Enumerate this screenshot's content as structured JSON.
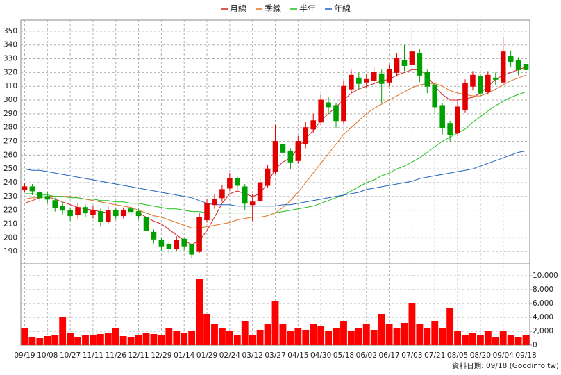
{
  "chart_data": {
    "type": "candlestick",
    "categories": [
      "09/19",
      null,
      null,
      "10/08",
      null,
      null,
      "10/27",
      null,
      null,
      "11/11",
      null,
      null,
      "11/26",
      null,
      null,
      "12/11",
      null,
      null,
      "12/29",
      null,
      null,
      "01/14",
      null,
      null,
      "01/29",
      null,
      null,
      "02/24",
      null,
      null,
      "03/12",
      null,
      null,
      "03/27",
      null,
      null,
      "04/15",
      null,
      null,
      "04/30",
      null,
      null,
      "05/18",
      null,
      null,
      "06/02",
      null,
      null,
      "06/17",
      null,
      null,
      "07/03",
      null,
      null,
      "07/21",
      null,
      null,
      "08/05",
      null,
      null,
      "08/20",
      null,
      null,
      "09/04",
      null,
      null,
      "09/18"
    ],
    "open": [
      235,
      237,
      233,
      230,
      227,
      223,
      220,
      217,
      222,
      217,
      219,
      212,
      220,
      216,
      221,
      219,
      215,
      204,
      198,
      195,
      192,
      199,
      195,
      190,
      213,
      224,
      229,
      236,
      243,
      237,
      224,
      227,
      238,
      248,
      268,
      263,
      256,
      268,
      279,
      284,
      298,
      296,
      285,
      308,
      316,
      313,
      314,
      319,
      313,
      320,
      329,
      326,
      334,
      320,
      311,
      296,
      283,
      276,
      293,
      310,
      317,
      306,
      316,
      313,
      332,
      329,
      326
    ],
    "high": [
      240,
      239,
      235,
      233,
      229,
      226,
      222,
      225,
      224,
      223,
      221,
      223,
      222,
      222,
      223,
      221,
      216,
      206,
      200,
      197,
      201,
      200,
      196,
      218,
      228,
      232,
      238,
      247,
      245,
      239,
      232,
      243,
      253,
      282,
      272,
      265,
      274,
      284,
      290,
      304,
      302,
      298,
      314,
      322,
      320,
      319,
      324,
      322,
      326,
      334,
      340,
      352,
      337,
      322,
      313,
      298,
      285,
      300,
      315,
      321,
      319,
      321,
      320,
      346,
      336,
      331,
      328
    ],
    "low": [
      233,
      231,
      226,
      225,
      219,
      217,
      212,
      214,
      215,
      214,
      208,
      210,
      213,
      214,
      216,
      213,
      202,
      196,
      190,
      189,
      190,
      191,
      185,
      189,
      211,
      221,
      226,
      234,
      235,
      220,
      212,
      225,
      236,
      246,
      258,
      250,
      254,
      265,
      276,
      282,
      290,
      280,
      283,
      305,
      308,
      309,
      311,
      298,
      310,
      317,
      321,
      322,
      313,
      305,
      290,
      275,
      270,
      274,
      291,
      307,
      302,
      304,
      311,
      311,
      324,
      318,
      318
    ],
    "close": [
      237,
      234,
      229,
      228,
      222,
      220,
      216,
      222,
      218,
      220,
      212,
      220,
      216,
      220,
      219,
      216,
      205,
      199,
      194,
      192,
      198,
      194,
      188,
      215,
      225,
      228,
      235,
      243,
      238,
      225,
      226,
      240,
      250,
      270,
      262,
      255,
      270,
      280,
      285,
      300,
      295,
      285,
      310,
      318,
      312,
      315,
      320,
      312,
      322,
      330,
      325,
      335,
      318,
      310,
      295,
      280,
      275,
      295,
      312,
      318,
      305,
      318,
      315,
      335,
      328,
      322,
      322
    ],
    "up_color": "#e00000",
    "down_color": "#00a000",
    "volume": [
      2500,
      1200,
      1000,
      1300,
      1500,
      4000,
      1800,
      1200,
      1500,
      1400,
      1600,
      1700,
      2500,
      1300,
      1200,
      1500,
      1800,
      1600,
      1500,
      2400,
      2000,
      1800,
      2000,
      9500,
      4500,
      3000,
      2500,
      2000,
      1500,
      3500,
      1500,
      2200,
      3000,
      6300,
      3000,
      2000,
      2500,
      2200,
      3000,
      2800,
      2000,
      2500,
      3500,
      2000,
      2500,
      3000,
      2200,
      4500,
      3000,
      2500,
      3200,
      6000,
      3000,
      2500,
      3500,
      2500,
      5300,
      2000,
      1500,
      1800,
      1500,
      2000,
      1200,
      2000,
      1500,
      1200,
      1500
    ],
    "volume_color": "#ff0000",
    "series": [
      {
        "name": "月線",
        "color": "#d02020",
        "values": [
          225,
          227,
          229,
          230,
          228,
          226,
          224,
          222,
          221,
          220,
          219,
          218,
          218,
          218,
          218,
          218,
          215,
          212,
          210,
          206,
          202,
          198,
          195,
          198,
          205,
          215,
          225,
          232,
          234,
          232,
          230,
          232,
          240,
          250,
          255,
          258,
          265,
          272,
          278,
          285,
          290,
          295,
          300,
          305,
          308,
          310,
          312,
          314,
          315,
          318,
          320,
          322,
          322,
          318,
          310,
          304,
          300,
          300,
          301,
          302,
          305,
          310,
          315,
          318,
          320,
          322,
          324
        ]
      },
      {
        "name": "季線",
        "color": "#e07020",
        "values": [
          228,
          229,
          229,
          230,
          230,
          230,
          230,
          229,
          228,
          227,
          226,
          225,
          224,
          223,
          222,
          220,
          218,
          216,
          215,
          213,
          211,
          209,
          207,
          207,
          208,
          209,
          210,
          211,
          213,
          214,
          215,
          215,
          216,
          218,
          222,
          227,
          233,
          240,
          247,
          254,
          261,
          268,
          275,
          280,
          285,
          290,
          294,
          297,
          300,
          303,
          306,
          309,
          311,
          312,
          312,
          310,
          307,
          305,
          304,
          303,
          303,
          305,
          308,
          311,
          314,
          316,
          318
        ]
      },
      {
        "name": "半年",
        "color": "#20c020",
        "values": [
          232,
          232,
          231,
          231,
          230,
          230,
          229,
          229,
          228,
          228,
          227,
          227,
          226,
          226,
          225,
          225,
          224,
          223,
          222,
          221,
          221,
          220,
          219,
          219,
          218,
          218,
          218,
          218,
          218,
          218,
          218,
          218,
          218,
          218,
          219,
          220,
          221,
          222,
          223,
          225,
          227,
          229,
          231,
          234,
          237,
          240,
          242,
          245,
          247,
          250,
          252,
          255,
          258,
          262,
          266,
          270,
          273,
          276,
          279,
          284,
          288,
          292,
          296,
          299,
          302,
          304,
          306
        ]
      },
      {
        "name": "年線",
        "color": "#2060c0",
        "values": [
          250,
          249,
          249,
          248,
          247,
          246,
          245,
          244,
          243,
          242,
          241,
          240,
          239,
          238,
          237,
          236,
          235,
          234,
          233,
          232,
          231,
          230,
          229,
          227,
          225,
          224,
          224,
          224,
          223,
          223,
          223,
          223,
          223,
          223,
          224,
          224,
          225,
          226,
          227,
          228,
          229,
          230,
          231,
          232,
          233,
          235,
          236,
          237,
          238,
          239,
          240,
          241,
          243,
          244,
          245,
          246,
          247,
          248,
          249,
          250,
          252,
          254,
          256,
          258,
          260,
          262,
          263
        ]
      }
    ],
    "ylim": [
      182,
      356
    ],
    "yticks": [
      190,
      200,
      210,
      220,
      230,
      240,
      250,
      260,
      270,
      280,
      290,
      300,
      310,
      320,
      330,
      340,
      350
    ],
    "volume_ylim": [
      0,
      11700
    ],
    "volume_yticks": [
      0,
      {
        "value": 2000,
        "label": "2,000"
      },
      {
        "value": 4000,
        "label": "4,000"
      },
      {
        "value": 6000,
        "label": "6,000"
      },
      {
        "value": 8000,
        "label": "8,000"
      },
      {
        "value": 10000,
        "label": "10,000"
      }
    ],
    "grid": true,
    "footer": "資料日期: 09/18  (Goodinfo.tw)"
  }
}
